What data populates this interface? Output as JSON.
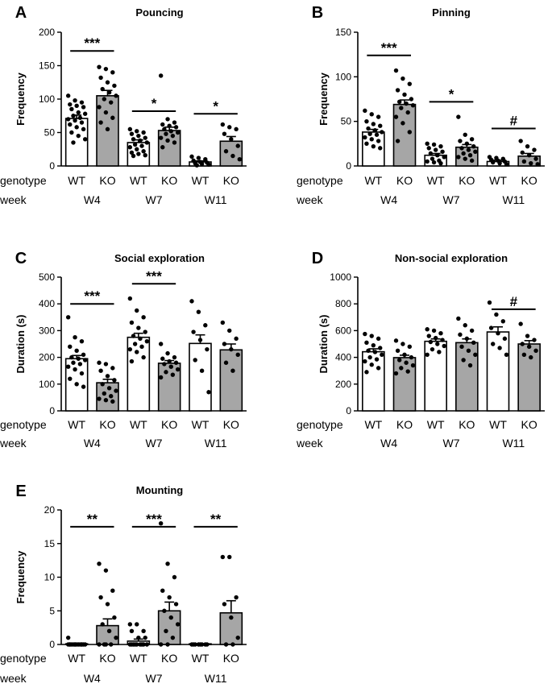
{
  "colors": {
    "wt_fill": "#ffffff",
    "ko_fill": "#a6a6a6",
    "stroke": "#000000"
  },
  "row_labels": {
    "genotype": "genotype",
    "week": "week"
  },
  "chart_data": [
    {
      "type": "bar",
      "letter": "A",
      "title": "Pouncing",
      "ylabel": "Frequency",
      "ylim": [
        0,
        200
      ],
      "yticks": [
        0,
        50,
        100,
        150,
        200
      ],
      "bars": [
        {
          "genotype": "WT",
          "mean": 71,
          "sem": 5,
          "points": [
            105,
            98,
            95,
            92,
            90,
            88,
            85,
            80,
            78,
            75,
            72,
            70,
            68,
            65,
            62,
            58,
            55,
            50,
            45,
            40,
            35
          ]
        },
        {
          "genotype": "KO",
          "mean": 105,
          "sem": 8,
          "points": [
            148,
            145,
            140,
            132,
            125,
            120,
            115,
            110,
            105,
            100,
            95,
            88,
            80,
            72,
            65,
            55
          ]
        },
        {
          "genotype": "WT",
          "mean": 35,
          "sem": 4,
          "points": [
            55,
            52,
            50,
            48,
            45,
            42,
            40,
            38,
            35,
            32,
            30,
            28,
            25,
            22,
            20,
            18,
            16,
            15
          ]
        },
        {
          "genotype": "KO",
          "mean": 53,
          "sem": 5,
          "points": [
            135,
            70,
            65,
            62,
            60,
            58,
            55,
            52,
            50,
            48,
            45,
            42,
            38,
            35,
            28
          ]
        },
        {
          "genotype": "WT",
          "mean": 6,
          "sem": 1.5,
          "points": [
            14,
            12,
            10,
            8,
            6,
            5,
            4,
            3,
            2,
            1
          ]
        },
        {
          "genotype": "KO",
          "mean": 37,
          "sem": 7,
          "points": [
            62,
            58,
            55,
            48,
            40,
            30,
            22,
            15,
            10
          ]
        }
      ],
      "weeks": [
        "W4",
        "W7",
        "W11"
      ],
      "sigs": [
        {
          "pair": 0,
          "label": "***",
          "y": 172
        },
        {
          "pair": 1,
          "label": "*",
          "y": 82
        },
        {
          "pair": 2,
          "label": "*",
          "y": 78
        }
      ]
    },
    {
      "type": "bar",
      "letter": "B",
      "title": "Pinning",
      "ylabel": "Frequency",
      "ylim": [
        0,
        150
      ],
      "yticks": [
        0,
        50,
        100,
        150
      ],
      "bars": [
        {
          "genotype": "WT",
          "mean": 38,
          "sem": 3,
          "points": [
            62,
            58,
            55,
            50,
            47,
            45,
            42,
            40,
            38,
            36,
            35,
            32,
            30,
            28,
            25,
            22,
            20
          ]
        },
        {
          "genotype": "KO",
          "mean": 69,
          "sem": 5,
          "points": [
            107,
            98,
            92,
            85,
            80,
            75,
            72,
            70,
            68,
            65,
            60,
            55,
            48,
            38,
            28
          ]
        },
        {
          "genotype": "WT",
          "mean": 12,
          "sem": 2,
          "points": [
            25,
            24,
            22,
            20,
            18,
            16,
            14,
            12,
            10,
            8,
            6,
            5,
            4,
            3
          ]
        },
        {
          "genotype": "KO",
          "mean": 21,
          "sem": 3,
          "points": [
            55,
            35,
            30,
            28,
            25,
            22,
            20,
            18,
            16,
            14,
            12,
            10,
            8,
            6
          ]
        },
        {
          "genotype": "WT",
          "mean": 5,
          "sem": 1.5,
          "points": [
            10,
            9,
            8,
            7,
            6,
            5,
            4,
            3,
            2
          ]
        },
        {
          "genotype": "KO",
          "mean": 11,
          "sem": 3,
          "points": [
            28,
            22,
            18,
            15,
            12,
            8,
            5,
            3,
            2
          ]
        }
      ],
      "weeks": [
        "W4",
        "W7",
        "W11"
      ],
      "sigs": [
        {
          "pair": 0,
          "label": "***",
          "y": 124
        },
        {
          "pair": 1,
          "label": "*",
          "y": 72
        },
        {
          "pair": 2,
          "label": "#",
          "y": 42
        }
      ]
    },
    {
      "type": "bar",
      "letter": "C",
      "title": "Social exploration",
      "ylabel": "Duration (s)",
      "ylim": [
        0,
        500
      ],
      "yticks": [
        0,
        100,
        200,
        300,
        400,
        500
      ],
      "bars": [
        {
          "genotype": "WT",
          "mean": 195,
          "sem": 12,
          "points": [
            350,
            275,
            260,
            240,
            225,
            210,
            200,
            195,
            190,
            180,
            175,
            165,
            155,
            140,
            120,
            100,
            90
          ]
        },
        {
          "genotype": "KO",
          "mean": 105,
          "sem": 13,
          "points": [
            180,
            175,
            160,
            150,
            130,
            115,
            100,
            85,
            75,
            65,
            55,
            45,
            40,
            35
          ]
        },
        {
          "genotype": "WT",
          "mean": 275,
          "sem": 15,
          "points": [
            420,
            375,
            350,
            330,
            310,
            295,
            280,
            270,
            260,
            250,
            240,
            230,
            220,
            200,
            185
          ]
        },
        {
          "genotype": "KO",
          "mean": 178,
          "sem": 10,
          "points": [
            250,
            215,
            200,
            195,
            185,
            180,
            175,
            165,
            155,
            145,
            135,
            125
          ]
        },
        {
          "genotype": "WT",
          "mean": 252,
          "sem": 32,
          "points": [
            410,
            370,
            320,
            295,
            265,
            230,
            190,
            150,
            70
          ]
        },
        {
          "genotype": "KO",
          "mean": 228,
          "sem": 22,
          "points": [
            330,
            300,
            270,
            250,
            230,
            210,
            180,
            150
          ]
        }
      ],
      "weeks": [
        "W4",
        "W7",
        "W11"
      ],
      "sigs": [
        {
          "pair": 0,
          "label": "***",
          "y": 400
        },
        {
          "pair": 1,
          "label": "***",
          "y": 475
        }
      ]
    },
    {
      "type": "bar",
      "letter": "D",
      "title": "Non-social exploration",
      "ylabel": "Duration (s)",
      "ylim": [
        0,
        1000
      ],
      "yticks": [
        0,
        200,
        400,
        600,
        800,
        1000
      ],
      "bars": [
        {
          "genotype": "WT",
          "mean": 442,
          "sem": 22,
          "points": [
            575,
            560,
            540,
            510,
            490,
            470,
            450,
            440,
            420,
            400,
            385,
            370,
            345,
            320,
            290
          ]
        },
        {
          "genotype": "KO",
          "mean": 398,
          "sem": 18,
          "points": [
            525,
            500,
            480,
            450,
            420,
            400,
            380,
            360,
            340,
            320,
            295,
            280
          ]
        },
        {
          "genotype": "WT",
          "mean": 520,
          "sem": 18,
          "points": [
            610,
            600,
            580,
            560,
            545,
            530,
            515,
            500,
            485,
            460,
            440,
            420
          ]
        },
        {
          "genotype": "KO",
          "mean": 510,
          "sem": 28,
          "points": [
            690,
            640,
            600,
            570,
            540,
            510,
            480,
            450,
            420,
            380,
            340
          ]
        },
        {
          "genotype": "WT",
          "mean": 590,
          "sem": 38,
          "points": [
            810,
            720,
            670,
            620,
            580,
            540,
            500,
            470,
            420
          ]
        },
        {
          "genotype": "KO",
          "mean": 500,
          "sem": 25,
          "points": [
            650,
            560,
            530,
            500,
            480,
            450,
            420,
            400
          ]
        }
      ],
      "weeks": [
        "W4",
        "W7",
        "W11"
      ],
      "sigs": [
        {
          "pair": 2,
          "label": "#",
          "y": 760
        }
      ]
    },
    {
      "type": "bar",
      "letter": "E",
      "title": "Mounting",
      "ylabel": "Frequency",
      "ylim": [
        0,
        20
      ],
      "yticks": [
        0,
        5,
        10,
        15,
        20
      ],
      "bars": [
        {
          "genotype": "WT",
          "mean": 0.1,
          "sem": 0.1,
          "points": [
            1,
            0,
            0,
            0,
            0,
            0,
            0,
            0,
            0,
            0,
            0,
            0,
            0,
            0,
            0
          ]
        },
        {
          "genotype": "KO",
          "mean": 2.8,
          "sem": 1.0,
          "points": [
            12,
            11,
            8,
            7,
            6,
            4,
            3,
            2,
            1,
            0,
            0,
            0,
            0
          ]
        },
        {
          "genotype": "WT",
          "mean": 0.5,
          "sem": 0.3,
          "points": [
            3,
            3,
            2,
            2,
            1,
            1,
            0,
            0,
            0,
            0,
            0,
            0,
            0,
            0,
            0
          ]
        },
        {
          "genotype": "KO",
          "mean": 5.0,
          "sem": 1.3,
          "points": [
            18,
            12,
            10,
            8,
            7,
            6,
            5,
            4,
            3,
            2,
            1,
            0,
            0
          ]
        },
        {
          "genotype": "WT",
          "mean": 0,
          "sem": 0,
          "points": [
            0,
            0,
            0,
            0,
            0,
            0,
            0,
            0
          ]
        },
        {
          "genotype": "KO",
          "mean": 4.7,
          "sem": 1.8,
          "points": [
            13,
            13,
            7,
            6,
            4,
            1,
            0,
            0
          ]
        }
      ],
      "weeks": [
        "W4",
        "W7",
        "W11"
      ],
      "sigs": [
        {
          "pair": 0,
          "label": "**",
          "y": 17.5
        },
        {
          "pair": 1,
          "label": "***",
          "y": 17.5
        },
        {
          "pair": 2,
          "label": "**",
          "y": 17.5
        }
      ]
    }
  ]
}
